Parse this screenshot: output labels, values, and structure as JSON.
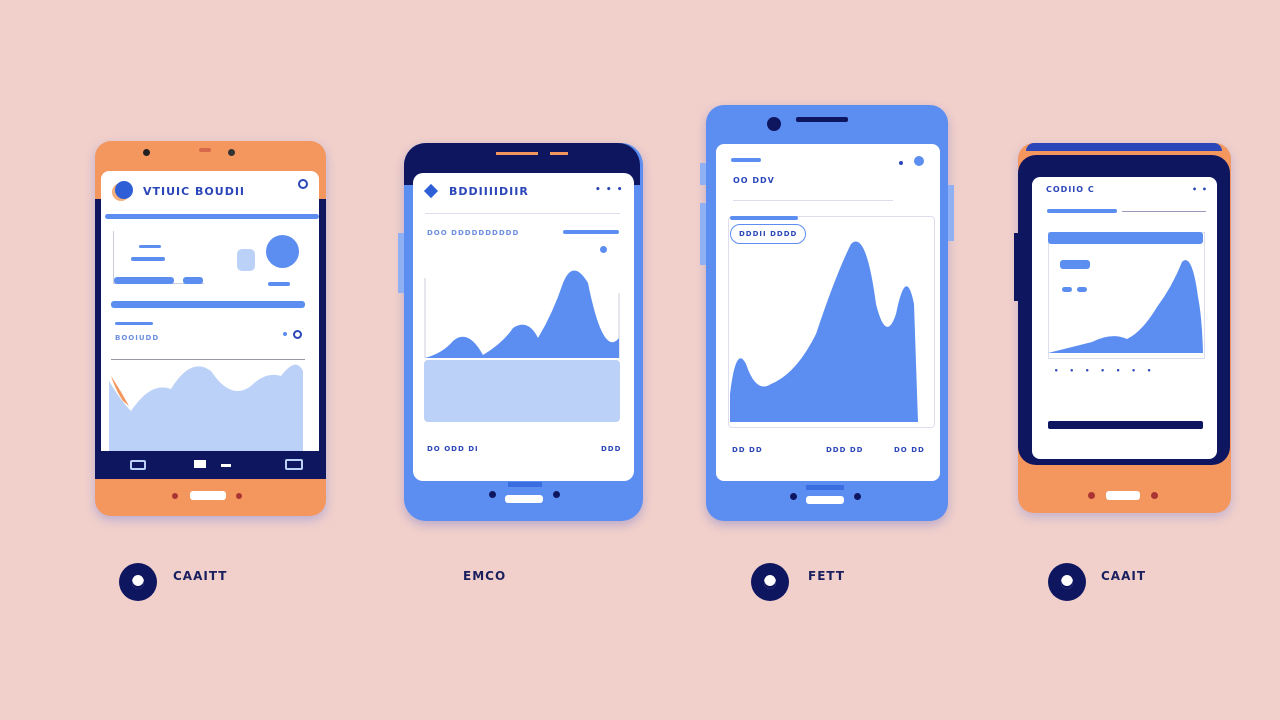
{
  "phones": [
    {
      "title": "VTIUIC BOUDII",
      "subtitle": "BOOIUDD",
      "caption": "CAAITT"
    },
    {
      "title": "BDDIIIIDIIR",
      "subtitle": "DOO DDDDDDDDDD",
      "footer_left": "DO ODD DI",
      "footer_right": "DDD",
      "caption": "EMCO"
    },
    {
      "title": "OO DDV",
      "card_label": "DDDII DDDD",
      "footer_items": [
        "DD DD",
        "DDD DD",
        "DO DD"
      ],
      "caption": "FETT"
    },
    {
      "title": "CODIIO C",
      "caption": "CAAIT"
    }
  ],
  "colors": {
    "background": "#f1d0cb",
    "orange": "#f4975f",
    "blue": "#5b8ef0",
    "navy": "#0f1660",
    "light_blue": "#bcd1f7"
  }
}
